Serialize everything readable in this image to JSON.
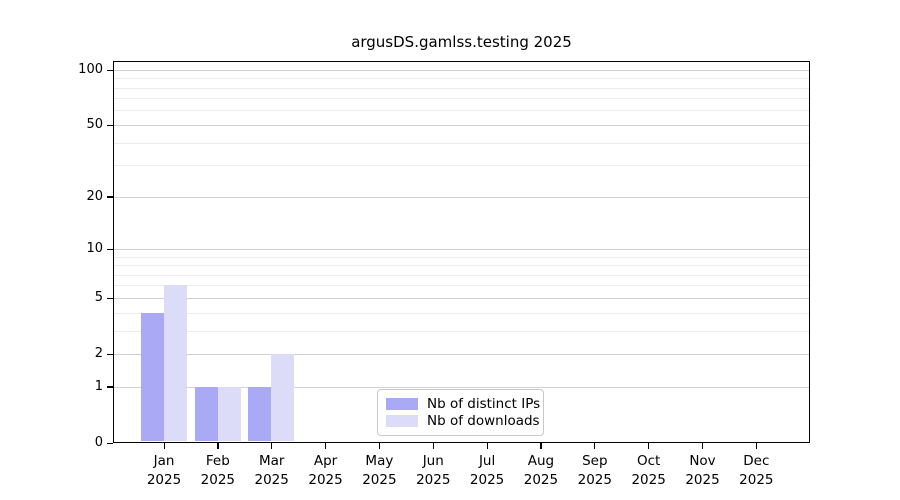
{
  "chart_data": {
    "type": "bar",
    "title": "argusDS.gamlss.testing 2025",
    "year": "2025",
    "categories": [
      "Jan",
      "Feb",
      "Mar",
      "Apr",
      "May",
      "Jun",
      "Jul",
      "Aug",
      "Sep",
      "Oct",
      "Nov",
      "Dec"
    ],
    "series": [
      {
        "name": "Nb of distinct IPs",
        "color": "#a9a9f5",
        "values": [
          4,
          1,
          1,
          0,
          0,
          0,
          0,
          0,
          0,
          0,
          0,
          0
        ]
      },
      {
        "name": "Nb of downloads",
        "color": "#dcdcf9",
        "values": [
          6,
          1,
          2,
          0,
          0,
          0,
          0,
          0,
          0,
          0,
          0,
          0
        ]
      }
    ],
    "y_axis": {
      "scale": "log1p",
      "major_ticks": [
        0,
        1,
        2,
        5,
        10,
        20,
        50,
        100
      ],
      "minor_ticks": [
        3,
        4,
        6,
        7,
        8,
        9,
        30,
        40,
        60,
        70,
        80,
        90
      ],
      "ymax": 100
    },
    "xlabel": "",
    "ylabel": "",
    "grid": true,
    "legend_position": "bottom-center"
  },
  "colors": {
    "background": "#ffffff",
    "axis": "#000000",
    "major_grid": "#d2d2d2",
    "minor_grid": "#ececec",
    "legend_border": "#c9c9c9",
    "bar_distinct_ips": "#a9a9f5",
    "bar_downloads": "#dcdcf9"
  }
}
